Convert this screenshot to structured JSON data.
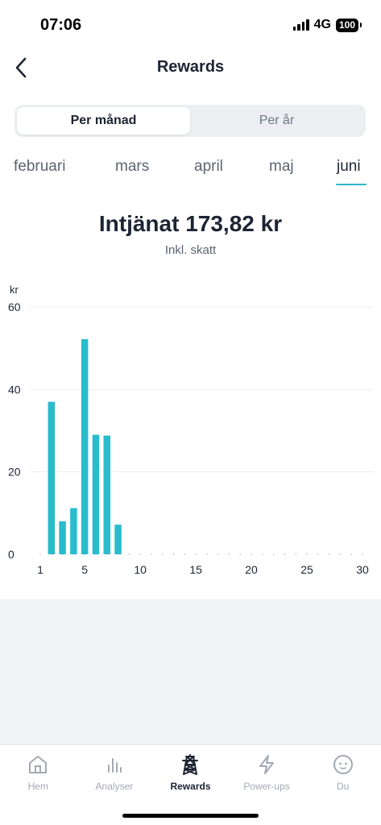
{
  "status_bar": {
    "time": "07:06",
    "network": "4G",
    "battery": "100"
  },
  "header": {
    "title": "Rewards"
  },
  "segmented": {
    "monthly": "Per månad",
    "yearly": "Per år"
  },
  "months": [
    "februari",
    "mars",
    "april",
    "maj",
    "juni"
  ],
  "selected_month": "juni",
  "summary": {
    "earned": "Intjänat 173,82 kr",
    "tax_note": "Inkl. skatt"
  },
  "colors": {
    "accent": "#2bb7c9",
    "bar": "#29bccd",
    "text": "#1d2433",
    "muted": "#5d6472"
  },
  "chart_data": {
    "type": "bar",
    "ylabel": "kr",
    "ylim": [
      0,
      60
    ],
    "yticks": [
      0,
      20,
      40,
      60
    ],
    "xlim": [
      1,
      30
    ],
    "xticks": [
      1,
      5,
      10,
      15,
      20,
      25,
      30
    ],
    "categories": [
      1,
      2,
      3,
      4,
      5,
      6,
      7,
      8,
      9,
      10,
      11,
      12,
      13,
      14,
      15,
      16,
      17,
      18,
      19,
      20,
      21,
      22,
      23,
      24,
      25,
      26,
      27,
      28,
      29,
      30
    ],
    "values": [
      0,
      37,
      8,
      11.2,
      52.2,
      29,
      28.8,
      7.2,
      0,
      0,
      0,
      0,
      0,
      0,
      0,
      0,
      0,
      0,
      0,
      0,
      0,
      0,
      0,
      0,
      0,
      0,
      0,
      0,
      0,
      0
    ],
    "grid": true
  },
  "tabbar": [
    {
      "label": "Hem",
      "icon": "home-icon"
    },
    {
      "label": "Analyser",
      "icon": "bar-chart-icon"
    },
    {
      "label": "Rewards",
      "icon": "pylon-icon"
    },
    {
      "label": "Power-ups",
      "icon": "lightning-icon"
    },
    {
      "label": "Du",
      "icon": "profile-face-icon"
    }
  ],
  "active_tab": "Rewards"
}
